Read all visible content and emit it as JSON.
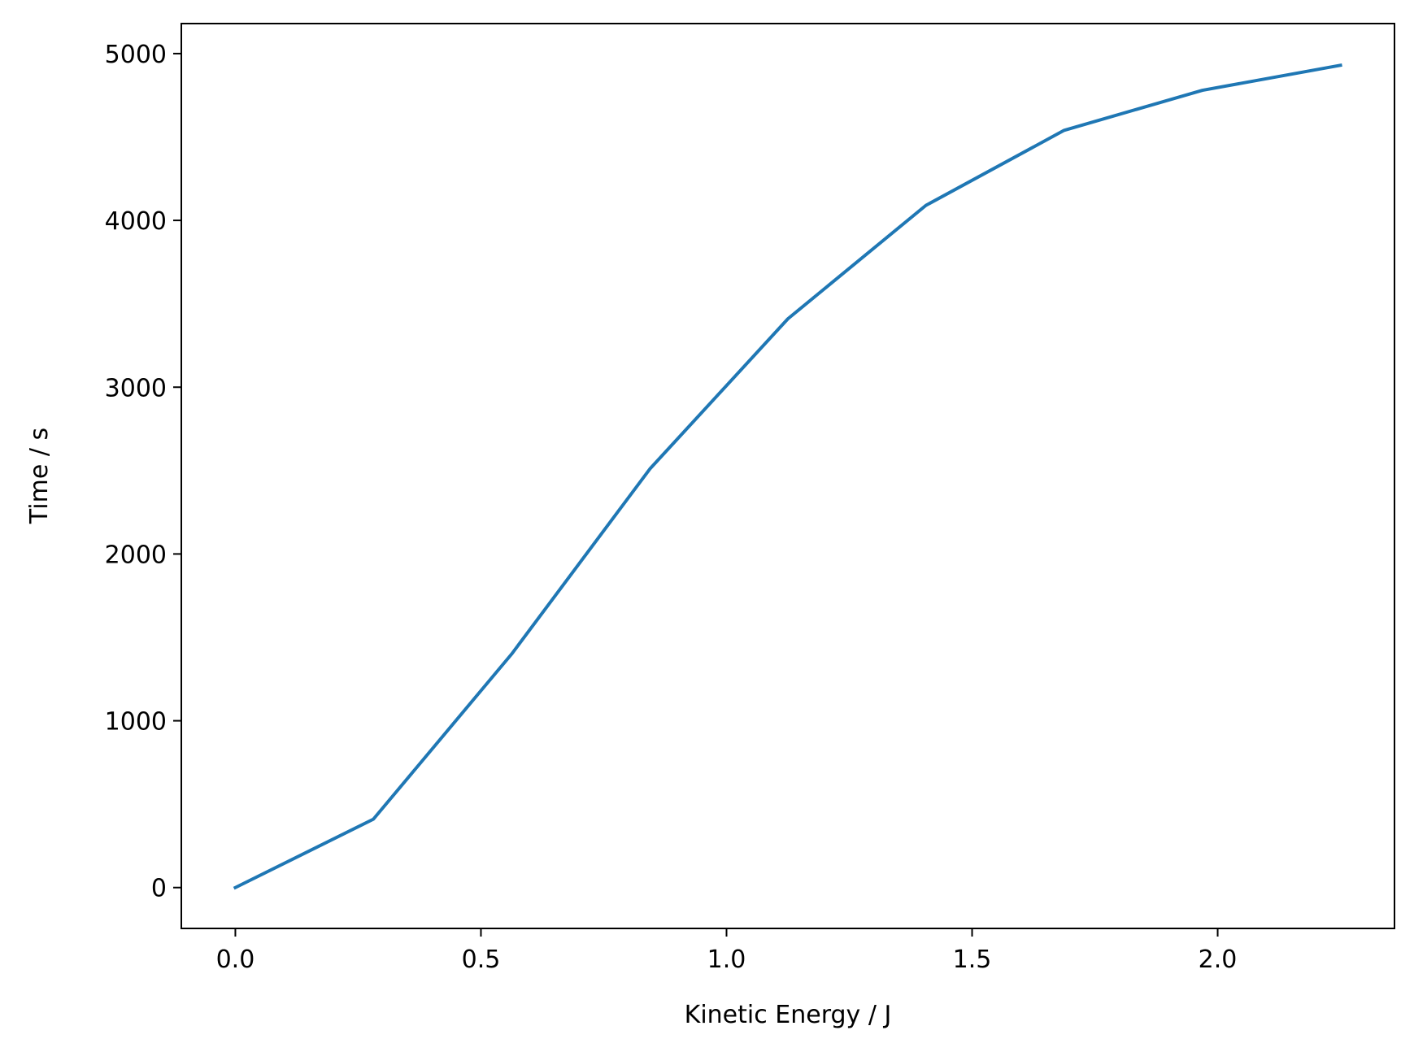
{
  "chart_data": {
    "type": "line",
    "title": "",
    "xlabel": "Kinetic Energy / J",
    "ylabel": "Time / s",
    "xlim": [
      -0.11,
      2.36
    ],
    "ylim": [
      -245,
      5180
    ],
    "xticks": [
      0.0,
      0.5,
      1.0,
      1.5,
      2.0
    ],
    "xtick_labels": [
      "0.0",
      "0.5",
      "1.0",
      "1.5",
      "2.0"
    ],
    "yticks": [
      0,
      1000,
      2000,
      3000,
      4000,
      5000
    ],
    "ytick_labels": [
      "0",
      "1000",
      "2000",
      "3000",
      "4000",
      "5000"
    ],
    "grid": false,
    "legend": false,
    "series": [
      {
        "color": "#1f77b4",
        "x": [
          0.0,
          0.281,
          0.5625,
          0.844,
          1.125,
          1.406,
          1.6875,
          1.969,
          2.25
        ],
        "y": [
          0,
          410,
          1400,
          2510,
          3410,
          4090,
          4540,
          4780,
          4930
        ]
      }
    ]
  }
}
